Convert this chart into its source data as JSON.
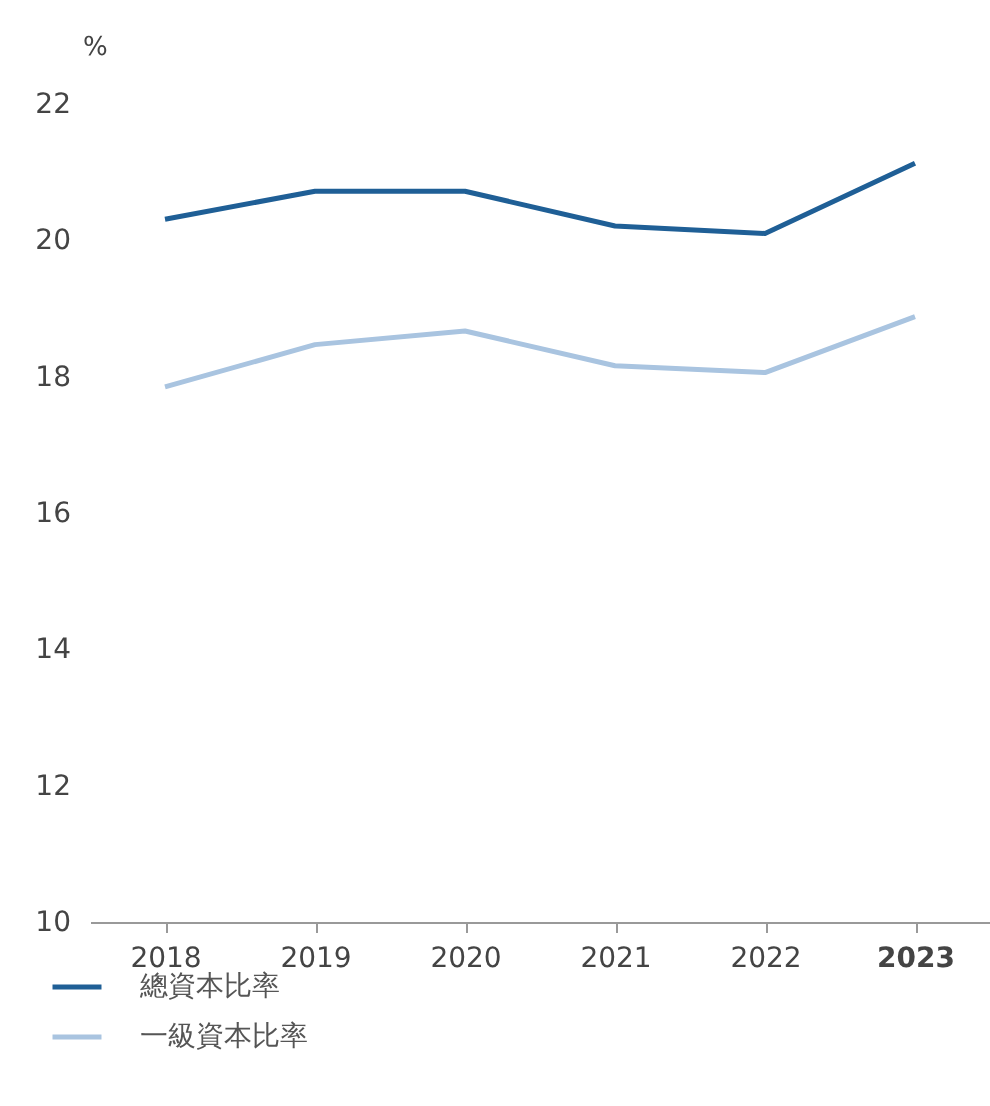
{
  "chart_data": {
    "type": "line",
    "ylabel": "%",
    "categories": [
      "2018",
      "2019",
      "2020",
      "2021",
      "2022",
      "2023"
    ],
    "series": [
      {
        "name": "總資本比率",
        "color": "#1f5f96",
        "values": [
          20.31,
          20.72,
          20.72,
          20.21,
          20.1,
          21.13
        ]
      },
      {
        "name": "一級資本比率",
        "color": "#a9c4e0",
        "values": [
          17.85,
          18.47,
          18.67,
          18.16,
          18.06,
          18.88
        ]
      }
    ],
    "ylim": [
      10,
      22
    ],
    "yticks": [
      10,
      12,
      14,
      16,
      18,
      20,
      22
    ],
    "grid": false,
    "legend": "bottom left",
    "marker": "none",
    "line_style": "solid"
  }
}
